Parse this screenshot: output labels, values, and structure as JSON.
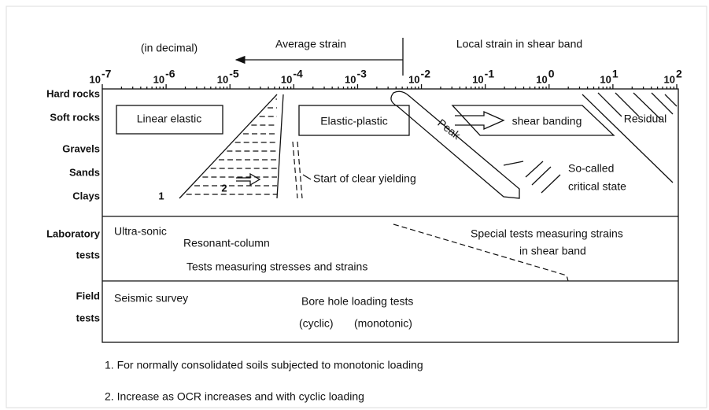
{
  "header": {
    "note": "(in decimal)",
    "left": "Average strain",
    "right": "Local strain in shear band"
  },
  "axis": [
    {
      "base": "10",
      "exp": "-7"
    },
    {
      "base": "10",
      "exp": "-6"
    },
    {
      "base": "10",
      "exp": "-5"
    },
    {
      "base": "10",
      "exp": "-4"
    },
    {
      "base": "10",
      "exp": "-3"
    },
    {
      "base": "10",
      "exp": "-2"
    },
    {
      "base": "10",
      "exp": "-1"
    },
    {
      "base": "10",
      "exp": "0"
    },
    {
      "base": "10",
      "exp": "1"
    },
    {
      "base": "10",
      "exp": "2"
    }
  ],
  "rows": [
    "Hard rocks",
    "Soft rocks",
    "Gravels",
    "Sands",
    "Clays",
    "Laboratory",
    "tests",
    "Field",
    "tests"
  ],
  "labels": [
    "Linear elastic",
    "Elastic-plastic",
    "shear banding",
    "Residual",
    "Peak",
    "Start of clear yielding",
    "So-called",
    "critical state",
    "1",
    "2",
    "Ultra-sonic",
    "Resonant-column",
    "Tests measuring stresses and strains",
    "Special tests measuring strains",
    "in shear band",
    "Seismic survey",
    "Bore hole loading tests",
    "(cyclic)",
    "(monotonic)"
  ],
  "footnotes": [
    "1. For normally consolidated soils subjected to monotonic loading",
    "2. Increase as OCR increases and with cyclic loading"
  ]
}
